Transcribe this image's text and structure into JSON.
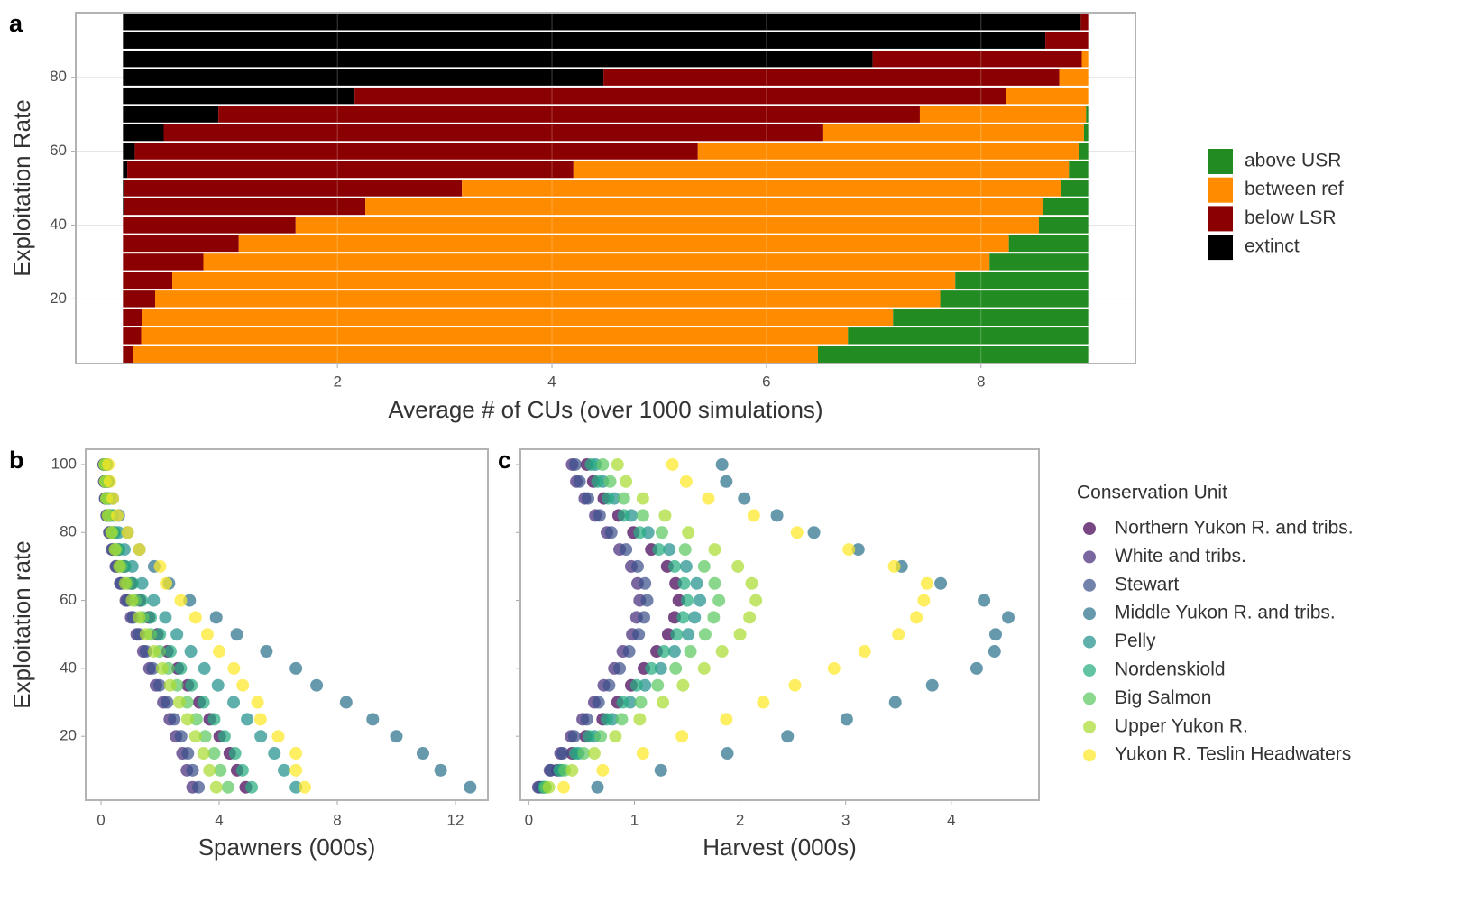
{
  "chart_data": [
    {
      "type": "bar",
      "orientation": "horizontal",
      "stacked": true,
      "panel_label": "a",
      "xlabel": "Average # of CUs (over 1000 simulations)",
      "ylabel": "Exploitation Rate",
      "y": [
        5,
        10,
        15,
        20,
        25,
        30,
        35,
        40,
        45,
        50,
        55,
        60,
        65,
        70,
        75,
        80,
        85,
        90,
        95
      ],
      "series": [
        {
          "name": "extinct",
          "color": "#000000",
          "values": [
            0,
            0,
            0,
            0,
            0,
            0,
            0,
            0,
            0.01,
            0.01,
            0.04,
            0.11,
            0.38,
            0.89,
            2.16,
            4.48,
            6.99,
            8.6,
            8.93
          ]
        },
        {
          "name": "below LSR",
          "color": "#8b0000",
          "values": [
            0.09,
            0.17,
            0.18,
            0.3,
            0.46,
            0.75,
            1.08,
            1.61,
            2.25,
            3.15,
            4.16,
            5.25,
            6.15,
            6.54,
            6.07,
            4.25,
            1.95,
            0.4,
            0.07
          ]
        },
        {
          "name": "between ref",
          "color": "#ff8c00",
          "values": [
            6.39,
            6.59,
            7.0,
            7.32,
            7.3,
            7.33,
            7.18,
            6.93,
            6.32,
            5.59,
            4.62,
            3.55,
            2.43,
            1.55,
            0.77,
            0.27,
            0.06,
            0,
            0
          ]
        },
        {
          "name": "above USR",
          "color": "#228b22",
          "values": [
            2.52,
            2.24,
            1.82,
            1.38,
            1.24,
            0.92,
            0.74,
            0.46,
            0.42,
            0.25,
            0.18,
            0.09,
            0.04,
            0.02,
            0,
            0,
            0,
            0,
            0
          ]
        }
      ],
      "xlim": [
        -0.44,
        9.44
      ],
      "xticks": [
        2,
        4,
        6,
        8
      ],
      "ylim": [
        2.5,
        97.5
      ],
      "yticks": [
        20,
        40,
        60,
        80
      ],
      "grid": true
    },
    {
      "type": "scatter",
      "panel_label": "b",
      "xlabel": "Spawners (000s)",
      "ylabel": "Exploitation rate",
      "y": [
        5,
        10,
        15,
        20,
        25,
        30,
        35,
        40,
        45,
        50,
        55,
        60,
        65,
        70,
        75,
        80,
        85,
        90,
        95,
        100
      ],
      "series": [
        {
          "color": "#440154",
          "x": [
            4.9,
            4.61,
            4.36,
            4.02,
            3.68,
            3.33,
            2.94,
            2.6,
            2.25,
            1.91,
            1.62,
            1.32,
            1.03,
            0.78,
            0.59,
            0.44,
            0.29,
            0.22,
            0.17,
            0.15
          ]
        },
        {
          "color": "#472d7b",
          "x": [
            3.1,
            2.91,
            2.76,
            2.54,
            2.33,
            2.11,
            1.86,
            1.64,
            1.43,
            1.21,
            1.02,
            0.84,
            0.65,
            0.5,
            0.37,
            0.28,
            0.19,
            0.14,
            0.11,
            0.09
          ]
        },
        {
          "color": "#3b528b",
          "x": [
            3.3,
            3.1,
            2.94,
            2.71,
            2.48,
            2.24,
            1.98,
            1.75,
            1.52,
            1.29,
            1.09,
            0.89,
            0.69,
            0.53,
            0.4,
            0.3,
            0.2,
            0.15,
            0.12,
            0.1
          ]
        },
        {
          "color": "#2c728e",
          "x": [
            12.5,
            11.5,
            10.9,
            10.0,
            9.2,
            8.3,
            7.3,
            6.6,
            5.6,
            4.6,
            3.9,
            3.0,
            2.3,
            1.8,
            1.3,
            0.9,
            0.6,
            0.4,
            0.25,
            0.15
          ]
        },
        {
          "color": "#21908c",
          "x": [
            6.6,
            6.2,
            5.87,
            5.41,
            4.95,
            4.49,
            3.96,
            3.5,
            3.04,
            2.57,
            2.18,
            1.78,
            1.39,
            1.06,
            0.79,
            0.59,
            0.4,
            0.3,
            0.23,
            0.2
          ]
        },
        {
          "color": "#27ad81",
          "x": [
            5.1,
            4.79,
            4.54,
            4.18,
            3.83,
            3.47,
            3.06,
            2.7,
            2.35,
            1.99,
            1.68,
            1.38,
            1.07,
            0.82,
            0.61,
            0.46,
            0.31,
            0.23,
            0.18,
            0.15
          ]
        },
        {
          "color": "#5dc863",
          "x": [
            4.3,
            4.04,
            3.83,
            3.53,
            3.23,
            2.92,
            2.58,
            2.28,
            1.98,
            1.68,
            1.42,
            1.16,
            0.9,
            0.69,
            0.52,
            0.39,
            0.26,
            0.19,
            0.15,
            0.13
          ]
        },
        {
          "color": "#aadc32",
          "x": [
            3.9,
            3.67,
            3.47,
            3.2,
            2.93,
            2.65,
            2.34,
            2.07,
            1.79,
            1.52,
            1.29,
            1.05,
            0.82,
            0.62,
            0.47,
            0.35,
            0.23,
            0.18,
            0.14,
            0.12
          ]
        },
        {
          "color": "#fde725",
          "x": [
            6.9,
            6.6,
            6.6,
            6.0,
            5.4,
            5.3,
            4.8,
            4.5,
            4.0,
            3.6,
            3.2,
            2.7,
            2.2,
            2.0,
            1.3,
            0.9,
            0.55,
            0.4,
            0.3,
            0.25
          ]
        }
      ],
      "xlim": [
        -0.52,
        13.1
      ],
      "xticks": [
        0,
        4,
        8,
        12
      ],
      "ylim": [
        1.2,
        104.5
      ],
      "yticks": [
        20,
        40,
        60,
        80,
        100
      ]
    },
    {
      "type": "scatter",
      "panel_label": "c",
      "xlabel": "Harvest (000s)",
      "legend_title": "Conservation Unit",
      "ytick_labels": false,
      "y": [
        5,
        10,
        15,
        20,
        25,
        30,
        35,
        40,
        45,
        50,
        55,
        60,
        65,
        70,
        75,
        80,
        85,
        90,
        95,
        100
      ],
      "series": [
        {
          "name": "Northern Yukon R. and tribs.",
          "color": "#440154",
          "x": [
            0.13,
            0.27,
            0.41,
            0.54,
            0.7,
            0.84,
            0.97,
            1.09,
            1.21,
            1.32,
            1.38,
            1.42,
            1.39,
            1.31,
            1.16,
            0.99,
            0.85,
            0.71,
            0.61,
            0.55
          ]
        },
        {
          "name": "White and tribs.",
          "color": "#472d7b",
          "x": [
            0.09,
            0.2,
            0.3,
            0.4,
            0.51,
            0.62,
            0.71,
            0.81,
            0.89,
            0.98,
            1.02,
            1.05,
            1.03,
            0.97,
            0.86,
            0.74,
            0.63,
            0.53,
            0.45,
            0.41
          ]
        },
        {
          "name": "Stewart",
          "color": "#3b528b",
          "x": [
            0.1,
            0.21,
            0.32,
            0.43,
            0.55,
            0.66,
            0.76,
            0.86,
            0.95,
            1.04,
            1.09,
            1.12,
            1.1,
            1.03,
            0.92,
            0.78,
            0.67,
            0.56,
            0.48,
            0.44
          ]
        },
        {
          "name": "Middle Yukon R. and tribs.",
          "color": "#2c728e",
          "x": [
            0.65,
            1.25,
            1.88,
            2.45,
            3.01,
            3.47,
            3.82,
            4.24,
            4.41,
            4.42,
            4.54,
            4.31,
            3.9,
            3.53,
            3.12,
            2.7,
            2.35,
            2.04,
            1.87,
            1.83
          ]
        },
        {
          "name": "Pelly",
          "color": "#21908c",
          "x": [
            0.15,
            0.31,
            0.47,
            0.62,
            0.79,
            0.96,
            1.1,
            1.25,
            1.38,
            1.51,
            1.57,
            1.62,
            1.59,
            1.49,
            1.33,
            1.13,
            0.97,
            0.81,
            0.7,
            0.63
          ]
        },
        {
          "name": "Nordenskiold",
          "color": "#27ad81",
          "x": [
            0.14,
            0.29,
            0.44,
            0.57,
            0.74,
            0.89,
            1.02,
            1.16,
            1.28,
            1.4,
            1.46,
            1.5,
            1.47,
            1.38,
            1.23,
            1.05,
            0.9,
            0.75,
            0.65,
            0.59
          ]
        },
        {
          "name": "Big Salmon",
          "color": "#5dc863",
          "x": [
            0.16,
            0.34,
            0.52,
            0.68,
            0.88,
            1.06,
            1.22,
            1.39,
            1.53,
            1.67,
            1.75,
            1.8,
            1.76,
            1.66,
            1.48,
            1.26,
            1.08,
            0.9,
            0.77,
            0.7
          ]
        },
        {
          "name": "Upper Yukon R.",
          "color": "#aadc32",
          "x": [
            0.19,
            0.41,
            0.62,
            0.82,
            1.05,
            1.27,
            1.46,
            1.66,
            1.83,
            2.0,
            2.09,
            2.15,
            2.11,
            1.98,
            1.76,
            1.51,
            1.29,
            1.08,
            0.92,
            0.84
          ]
        },
        {
          "name": "Yukon R. Teslin Headwaters",
          "color": "#fde725",
          "x": [
            0.33,
            0.7,
            1.08,
            1.45,
            1.87,
            2.22,
            2.52,
            2.89,
            3.18,
            3.5,
            3.67,
            3.74,
            3.77,
            3.46,
            3.03,
            2.54,
            2.13,
            1.7,
            1.49,
            1.36
          ]
        }
      ],
      "xlim": [
        -0.08,
        4.83
      ],
      "xticks": [
        0,
        1,
        2,
        3,
        4
      ],
      "ylim": [
        1.2,
        104.5
      ],
      "yticks": [
        20,
        40,
        60,
        80,
        100
      ]
    }
  ]
}
